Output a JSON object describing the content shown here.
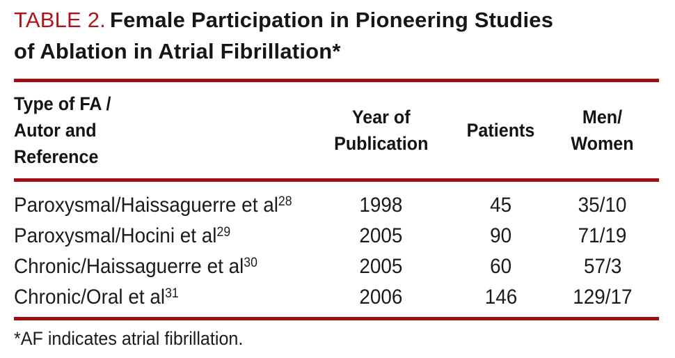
{
  "title": {
    "label": "TABLE 2.",
    "line1": "Female Participation in Pioneering Studies",
    "line2": "of Ablation in Atrial Fibrillation*"
  },
  "columns": [
    {
      "label_lines": [
        "Type of FA /",
        "Autor and",
        "Reference"
      ]
    },
    {
      "label_lines": [
        "Year of",
        "Publication"
      ]
    },
    {
      "label_lines": [
        "Patients"
      ]
    },
    {
      "label_lines": [
        "Men/",
        "Women"
      ]
    }
  ],
  "rows": [
    {
      "study": "Paroxysmal/Haissaguerre et al",
      "ref": "28",
      "year": "1998",
      "patients": "45",
      "men_women": "35/10"
    },
    {
      "study": "Paroxysmal/Hocini et al",
      "ref": "29",
      "year": "2005",
      "patients": "90",
      "men_women": "71/19"
    },
    {
      "study": "Chronic/Haissaguerre et al",
      "ref": "30",
      "year": "2005",
      "patients": "60",
      "men_women": "57/3"
    },
    {
      "study": "Chronic/Oral et al",
      "ref": "31",
      "year": "2006",
      "patients": "146",
      "men_women": "129/17"
    }
  ],
  "footnote": "*AF indicates atrial fibrillation.",
  "colors": {
    "accent_red_rule": "#A30C10",
    "title_label_red": "#B01318",
    "text_black": "#1b1b1b"
  }
}
